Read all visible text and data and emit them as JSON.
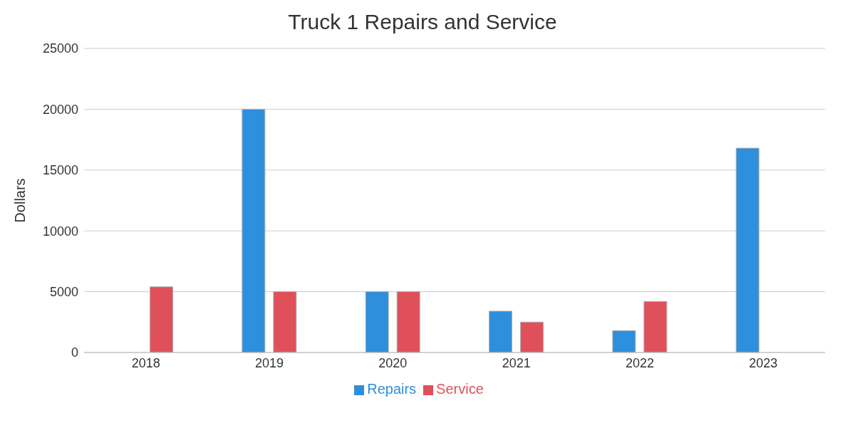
{
  "chart_data": {
    "type": "bar",
    "title": "Truck 1 Repairs and Service",
    "ylabel": "Dollars",
    "categories": [
      "2018",
      "2019",
      "2020",
      "2021",
      "2022",
      "2023"
    ],
    "series": [
      {
        "name": "Repairs",
        "color": "#2e8fdc",
        "values": [
          null,
          20000,
          5000,
          3400,
          1800,
          16800
        ]
      },
      {
        "name": "Service",
        "color": "#e0505a",
        "values": [
          5400,
          5000,
          5000,
          2500,
          4200,
          null
        ]
      }
    ],
    "ylim": [
      0,
      25000
    ],
    "yticks": [
      0,
      5000,
      10000,
      15000,
      20000,
      25000
    ],
    "grid": "y",
    "legend": "bottom"
  }
}
